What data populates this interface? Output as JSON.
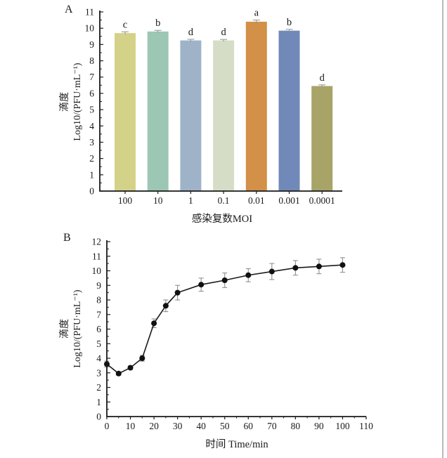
{
  "figure": {
    "background": "#ffffff",
    "edge_line_color": "#b9b9b9",
    "axis_color": "#1a1a1a",
    "tick_label_color": "#1a1a1a"
  },
  "chart_data": [
    {
      "id": "panel-a",
      "type": "bar",
      "panel_label": "A",
      "title": "",
      "xlabel": "感染复数MOI",
      "ylabel_line1": "滴度",
      "ylabel_line2": "Log10/(PFU·mL⁻¹)",
      "categories": [
        "100",
        "10",
        "1",
        "0.1",
        "0.01",
        "0.001",
        "0.0001"
      ],
      "values": [
        9.7,
        9.8,
        9.25,
        9.25,
        10.4,
        9.85,
        6.45
      ],
      "errors": [
        0.08,
        0.07,
        0.07,
        0.06,
        0.1,
        0.08,
        0.07
      ],
      "sig_letters": [
        "c",
        "b",
        "d",
        "d",
        "a",
        "b",
        "d"
      ],
      "bar_colors": [
        "#d3d288",
        "#9cc7b4",
        "#9fb3c8",
        "#d6ddc6",
        "#d29048",
        "#7189b8",
        "#a8a468"
      ],
      "ylim": [
        0,
        11
      ],
      "ytick_step": 1,
      "grid": false,
      "legend": "none",
      "error_bar_color": "#8f8f8f"
    },
    {
      "id": "panel-b",
      "type": "line",
      "panel_label": "B",
      "title": "",
      "xlabel": "时间  Time/min",
      "ylabel_line1": "滴度",
      "ylabel_line2": "Log10/(PFU·mL⁻¹)",
      "x": [
        0,
        5,
        10,
        15,
        20,
        25,
        30,
        40,
        50,
        60,
        70,
        80,
        90,
        100
      ],
      "y": [
        3.6,
        2.95,
        3.35,
        4.0,
        6.4,
        7.6,
        8.5,
        9.05,
        9.35,
        9.7,
        9.95,
        10.2,
        10.3,
        10.4
      ],
      "errors": [
        0.2,
        0.12,
        0.12,
        0.2,
        0.3,
        0.4,
        0.5,
        0.45,
        0.5,
        0.45,
        0.55,
        0.5,
        0.5,
        0.5
      ],
      "xlim": [
        0,
        110
      ],
      "ylim": [
        0,
        12
      ],
      "xtick_step": 10,
      "ytick_step": 1,
      "grid": false,
      "legend": "none",
      "line_color": "#1a1a1a",
      "marker_color": "#111111",
      "error_bar_color": "#8f8f8f"
    }
  ]
}
